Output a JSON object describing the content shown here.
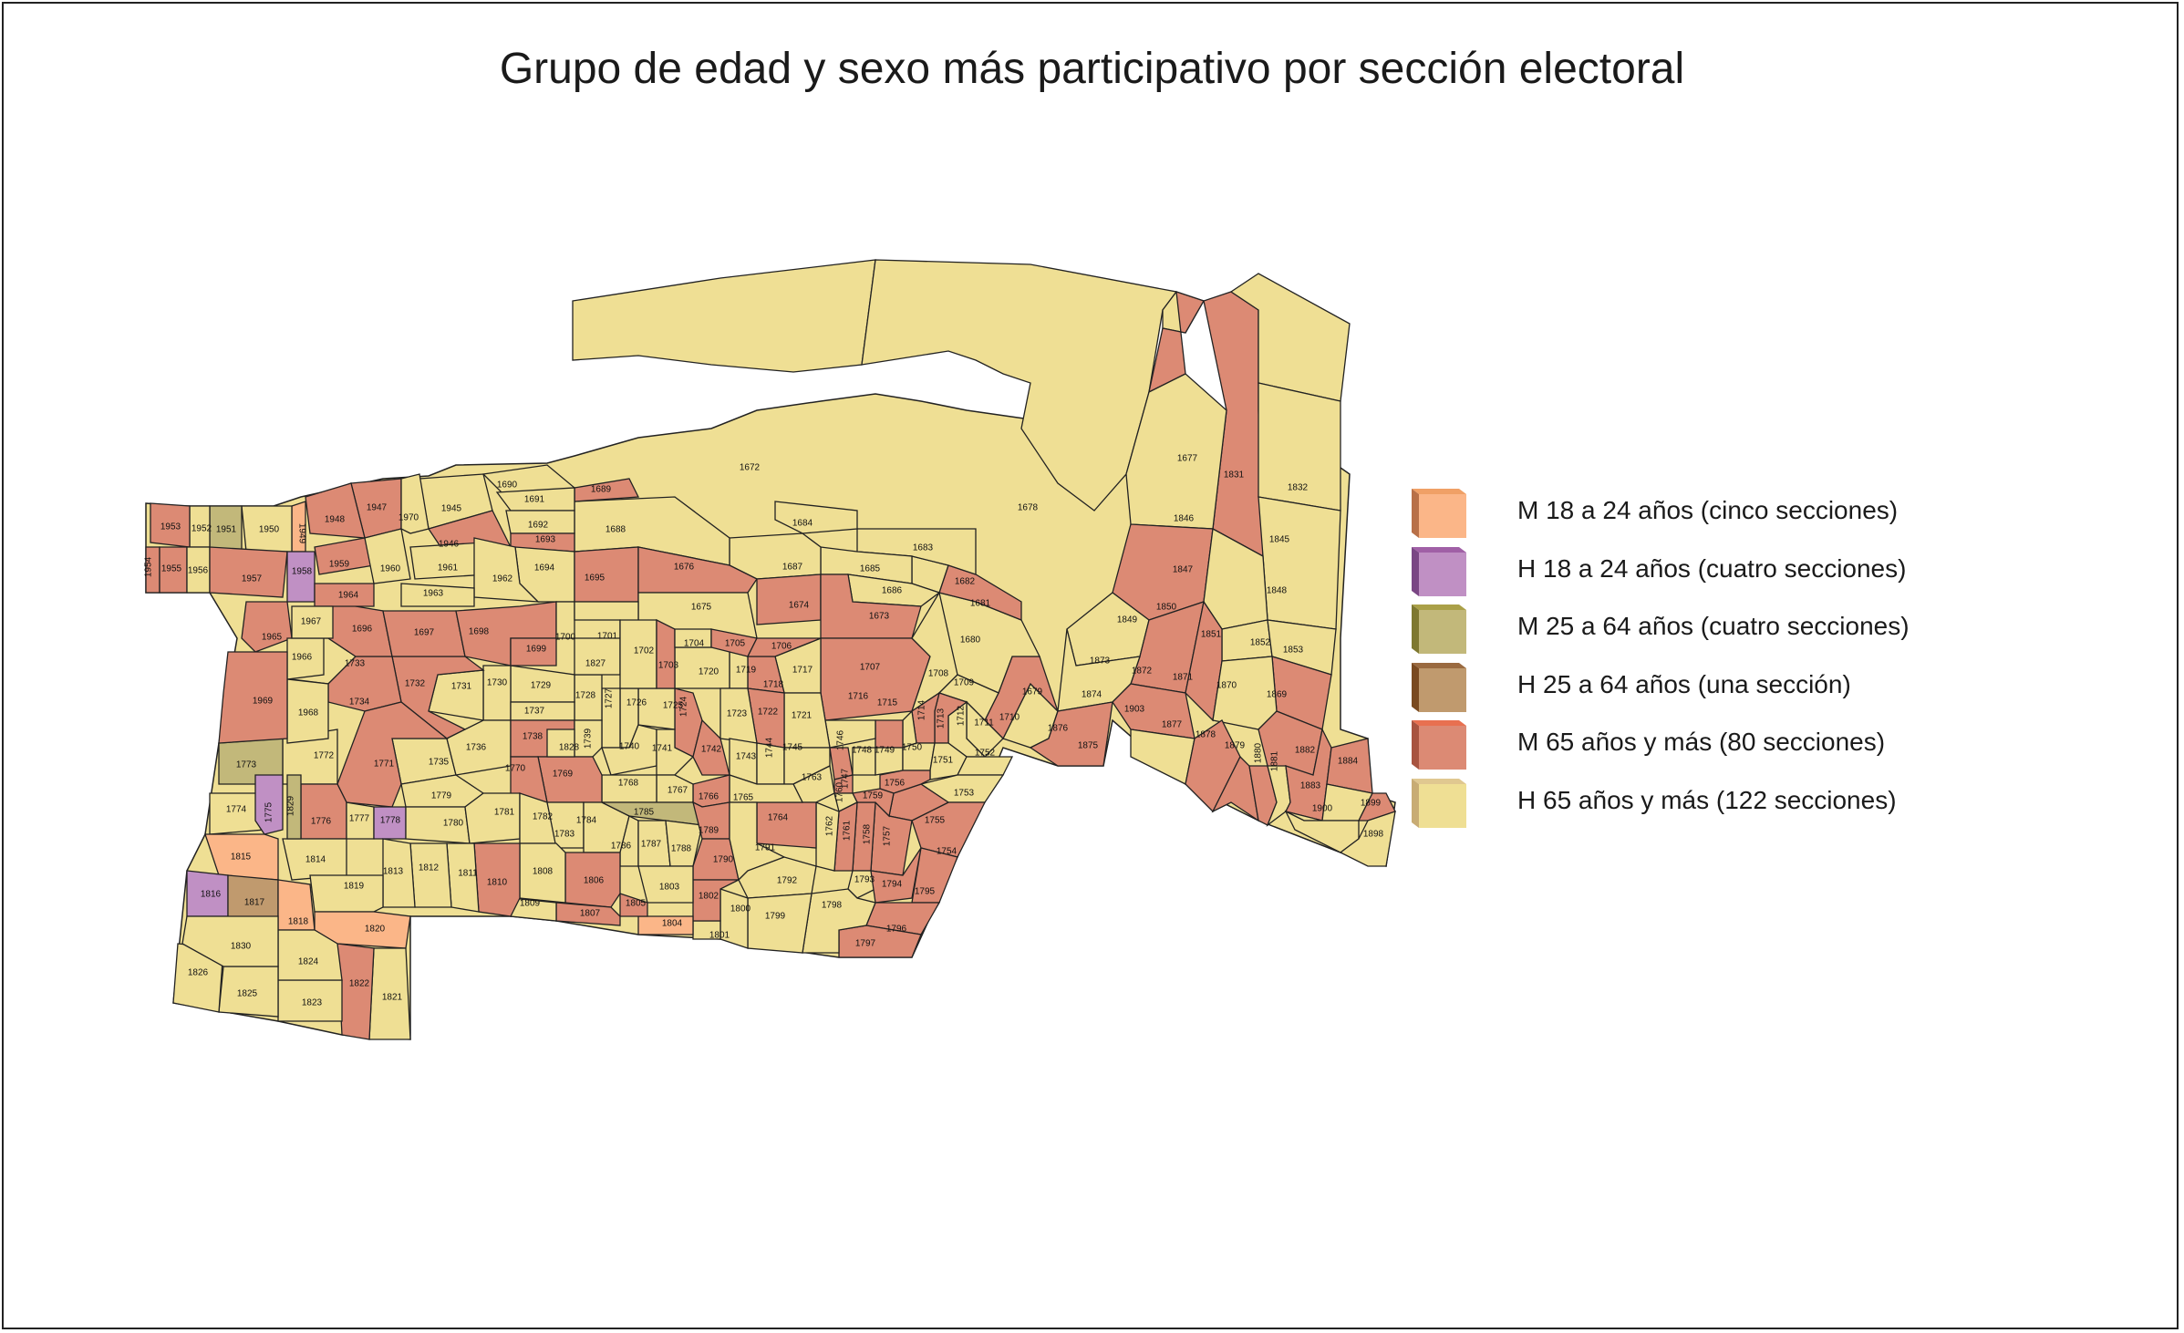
{
  "title": "Grupo de edad y sexo más participativo por sección electoral",
  "colors": {
    "M18": "#fbb688",
    "H18": "#c090c4",
    "M25": "#c2b87a",
    "H25": "#c09a6e",
    "M65": "#dc8a74",
    "H65": "#efdf94"
  },
  "legend": [
    {
      "key": "M18",
      "label": "M 18 a 24 años (cinco secciones)",
      "top": "#f0a066",
      "side": "#b87048"
    },
    {
      "key": "H18",
      "label": "H 18 a 24 años (cuatro secciones)",
      "top": "#a060a6",
      "side": "#7a4684"
    },
    {
      "key": "M25",
      "label": "M 25 a 64 años (cuatro secciones)",
      "top": "#aaa048",
      "side": "#7e7830"
    },
    {
      "key": "H25",
      "label": "H 25 a 64 años (una sección)",
      "top": "#9a6a40",
      "side": "#7a4a20"
    },
    {
      "key": "M65",
      "label": "M 65 años y más (80 secciones)",
      "top": "#e87050",
      "side": "#a85440"
    },
    {
      "key": "H65",
      "label": "H 65 años y más (122 secciones)",
      "top": "#e0c890",
      "side": "#c8ac74"
    }
  ],
  "sections": [
    {
      "id": "1672",
      "cat": "H65"
    },
    {
      "id": "1678",
      "cat": "H65"
    },
    {
      "id": "1677",
      "cat": "H65"
    },
    {
      "id": "1831",
      "cat": "M65"
    },
    {
      "id": "1832",
      "cat": "H65"
    },
    {
      "id": "1846",
      "cat": "M65"
    },
    {
      "id": "1845",
      "cat": "H65"
    },
    {
      "id": "1847",
      "cat": "H65"
    },
    {
      "id": "1848",
      "cat": "H65"
    },
    {
      "id": "1849",
      "cat": "M65"
    },
    {
      "id": "1850",
      "cat": "H65"
    },
    {
      "id": "1851",
      "cat": "H65"
    },
    {
      "id": "1852",
      "cat": "H65"
    },
    {
      "id": "1853",
      "cat": "M65"
    },
    {
      "id": "1873",
      "cat": "H65"
    },
    {
      "id": "1872",
      "cat": "M65"
    },
    {
      "id": "1871",
      "cat": "M65"
    },
    {
      "id": "1870",
      "cat": "H65"
    },
    {
      "id": "1869",
      "cat": "M65"
    },
    {
      "id": "1874",
      "cat": "H65"
    },
    {
      "id": "1903",
      "cat": "M65"
    },
    {
      "id": "1877",
      "cat": "H65"
    },
    {
      "id": "1878",
      "cat": "M65"
    },
    {
      "id": "1879",
      "cat": "M65"
    },
    {
      "id": "1880",
      "cat": "M65"
    },
    {
      "id": "1881",
      "cat": "H65"
    },
    {
      "id": "1882",
      "cat": "M65"
    },
    {
      "id": "1884",
      "cat": "M65"
    },
    {
      "id": "1883",
      "cat": "H65"
    },
    {
      "id": "1900",
      "cat": "H65"
    },
    {
      "id": "1899",
      "cat": "M65"
    },
    {
      "id": "1898",
      "cat": "H65"
    },
    {
      "id": "1876",
      "cat": "H65"
    },
    {
      "id": "1875",
      "cat": "M65"
    },
    {
      "id": "1679",
      "cat": "M65"
    },
    {
      "id": "1680",
      "cat": "H65"
    },
    {
      "id": "1681",
      "cat": "M65"
    },
    {
      "id": "1682",
      "cat": "H65"
    },
    {
      "id": "1683",
      "cat": "H65"
    },
    {
      "id": "1684",
      "cat": "H65"
    },
    {
      "id": "1685",
      "cat": "H65"
    },
    {
      "id": "1686",
      "cat": "H65"
    },
    {
      "id": "1687",
      "cat": "H65"
    },
    {
      "id": "1688",
      "cat": "H65"
    },
    {
      "id": "1689",
      "cat": "M65"
    },
    {
      "id": "1690",
      "cat": "H65"
    },
    {
      "id": "1691",
      "cat": "H65"
    },
    {
      "id": "1692",
      "cat": "H65"
    },
    {
      "id": "1693",
      "cat": "M65"
    },
    {
      "id": "1694",
      "cat": "H65"
    },
    {
      "id": "1695",
      "cat": "M65"
    },
    {
      "id": "1676",
      "cat": "M65"
    },
    {
      "id": "1675",
      "cat": "H65"
    },
    {
      "id": "1674",
      "cat": "M65"
    },
    {
      "id": "1673",
      "cat": "M65"
    },
    {
      "id": "1707",
      "cat": "M65"
    },
    {
      "id": "1708",
      "cat": "H65"
    },
    {
      "id": "1709",
      "cat": "H65"
    },
    {
      "id": "1710",
      "cat": "H65"
    },
    {
      "id": "1711",
      "cat": "H65"
    },
    {
      "id": "1712",
      "cat": "M65"
    },
    {
      "id": "1713",
      "cat": "M65"
    },
    {
      "id": "1714",
      "cat": "H65"
    },
    {
      "id": "1715",
      "cat": "M65"
    },
    {
      "id": "1716",
      "cat": "H65"
    },
    {
      "id": "1717",
      "cat": "H65"
    },
    {
      "id": "1718",
      "cat": "M65"
    },
    {
      "id": "1719",
      "cat": "H65"
    },
    {
      "id": "1720",
      "cat": "H65"
    },
    {
      "id": "1721",
      "cat": "H65"
    },
    {
      "id": "1722",
      "cat": "M65"
    },
    {
      "id": "1723",
      "cat": "H65"
    },
    {
      "id": "1724",
      "cat": "M65"
    },
    {
      "id": "1725",
      "cat": "H65"
    },
    {
      "id": "1726",
      "cat": "H65"
    },
    {
      "id": "1727",
      "cat": "H65"
    },
    {
      "id": "1728",
      "cat": "H65"
    },
    {
      "id": "1729",
      "cat": "H65"
    },
    {
      "id": "1730",
      "cat": "H65"
    },
    {
      "id": "1731",
      "cat": "H65"
    },
    {
      "id": "1732",
      "cat": "M65"
    },
    {
      "id": "1733",
      "cat": "H65"
    },
    {
      "id": "1734",
      "cat": "M65"
    },
    {
      "id": "1735",
      "cat": "H65"
    },
    {
      "id": "1736",
      "cat": "H65"
    },
    {
      "id": "1737",
      "cat": "H65"
    },
    {
      "id": "1738",
      "cat": "M65"
    },
    {
      "id": "1739",
      "cat": "H65"
    },
    {
      "id": "1740",
      "cat": "H65"
    },
    {
      "id": "1741",
      "cat": "H65"
    },
    {
      "id": "1742",
      "cat": "M65"
    },
    {
      "id": "1743",
      "cat": "H65"
    },
    {
      "id": "1744",
      "cat": "H65"
    },
    {
      "id": "1745",
      "cat": "H65"
    },
    {
      "id": "1746",
      "cat": "M65"
    },
    {
      "id": "1747",
      "cat": "M65"
    },
    {
      "id": "1748",
      "cat": "H65"
    },
    {
      "id": "1749",
      "cat": "H65"
    },
    {
      "id": "1750",
      "cat": "H65"
    },
    {
      "id": "1751",
      "cat": "H65"
    },
    {
      "id": "1752",
      "cat": "H65"
    },
    {
      "id": "1753",
      "cat": "H65"
    },
    {
      "id": "1754",
      "cat": "M65"
    },
    {
      "id": "1755",
      "cat": "M65"
    },
    {
      "id": "1756",
      "cat": "M65"
    },
    {
      "id": "1757",
      "cat": "M65"
    },
    {
      "id": "1758",
      "cat": "M65"
    },
    {
      "id": "1759",
      "cat": "M65"
    },
    {
      "id": "1760",
      "cat": "H65"
    },
    {
      "id": "1761",
      "cat": "M65"
    },
    {
      "id": "1762",
      "cat": "H65"
    },
    {
      "id": "1763",
      "cat": "H65"
    },
    {
      "id": "1764",
      "cat": "M65"
    },
    {
      "id": "1765",
      "cat": "H65"
    },
    {
      "id": "1766",
      "cat": "M65"
    },
    {
      "id": "1767",
      "cat": "H65"
    },
    {
      "id": "1768",
      "cat": "H65"
    },
    {
      "id": "1769",
      "cat": "M65"
    },
    {
      "id": "1770",
      "cat": "M65"
    },
    {
      "id": "1771",
      "cat": "M65"
    },
    {
      "id": "1772",
      "cat": "H65"
    },
    {
      "id": "1773",
      "cat": "M25"
    },
    {
      "id": "1774",
      "cat": "H65"
    },
    {
      "id": "1775",
      "cat": "H18"
    },
    {
      "id": "1776",
      "cat": "M65"
    },
    {
      "id": "1777",
      "cat": "H65"
    },
    {
      "id": "1778",
      "cat": "H18"
    },
    {
      "id": "1779",
      "cat": "H65"
    },
    {
      "id": "1780",
      "cat": "H65"
    },
    {
      "id": "1781",
      "cat": "H65"
    },
    {
      "id": "1782",
      "cat": "H65"
    },
    {
      "id": "1783",
      "cat": "H65"
    },
    {
      "id": "1784",
      "cat": "H65"
    },
    {
      "id": "1785",
      "cat": "M25"
    },
    {
      "id": "1786",
      "cat": "H65"
    },
    {
      "id": "1787",
      "cat": "H65"
    },
    {
      "id": "1788",
      "cat": "H65"
    },
    {
      "id": "1789",
      "cat": "M65"
    },
    {
      "id": "1790",
      "cat": "M65"
    },
    {
      "id": "1791",
      "cat": "H65"
    },
    {
      "id": "1792",
      "cat": "H65"
    },
    {
      "id": "1793",
      "cat": "H65"
    },
    {
      "id": "1794",
      "cat": "M65"
    },
    {
      "id": "1795",
      "cat": "M65"
    },
    {
      "id": "1796",
      "cat": "M65"
    },
    {
      "id": "1797",
      "cat": "M65"
    },
    {
      "id": "1798",
      "cat": "H65"
    },
    {
      "id": "1799",
      "cat": "H65"
    },
    {
      "id": "1800",
      "cat": "H65"
    },
    {
      "id": "1801",
      "cat": "H65"
    },
    {
      "id": "1802",
      "cat": "M65"
    },
    {
      "id": "1803",
      "cat": "H65"
    },
    {
      "id": "1804",
      "cat": "M18"
    },
    {
      "id": "1805",
      "cat": "M65"
    },
    {
      "id": "1806",
      "cat": "M65"
    },
    {
      "id": "1807",
      "cat": "M65"
    },
    {
      "id": "1808",
      "cat": "H65"
    },
    {
      "id": "1809",
      "cat": "H65"
    },
    {
      "id": "1810",
      "cat": "M65"
    },
    {
      "id": "1811",
      "cat": "H65"
    },
    {
      "id": "1812",
      "cat": "H65"
    },
    {
      "id": "1813",
      "cat": "H65"
    },
    {
      "id": "1814",
      "cat": "H65"
    },
    {
      "id": "1815",
      "cat": "M18"
    },
    {
      "id": "1816",
      "cat": "H18"
    },
    {
      "id": "1817",
      "cat": "H25"
    },
    {
      "id": "1818",
      "cat": "M18"
    },
    {
      "id": "1819",
      "cat": "H65"
    },
    {
      "id": "1820",
      "cat": "M18"
    },
    {
      "id": "1821",
      "cat": "H65"
    },
    {
      "id": "1822",
      "cat": "M65"
    },
    {
      "id": "1823",
      "cat": "H65"
    },
    {
      "id": "1824",
      "cat": "H65"
    },
    {
      "id": "1825",
      "cat": "H65"
    },
    {
      "id": "1826",
      "cat": "H65"
    },
    {
      "id": "1827",
      "cat": "H65"
    },
    {
      "id": "1828",
      "cat": "H65"
    },
    {
      "id": "1829",
      "cat": "M25"
    },
    {
      "id": "1830",
      "cat": "H65"
    },
    {
      "id": "1696",
      "cat": "M65"
    },
    {
      "id": "1697",
      "cat": "M65"
    },
    {
      "id": "1698",
      "cat": "M65"
    },
    {
      "id": "1699",
      "cat": "M65"
    },
    {
      "id": "1700",
      "cat": "H65"
    },
    {
      "id": "1701",
      "cat": "H65"
    },
    {
      "id": "1702",
      "cat": "H65"
    },
    {
      "id": "1703",
      "cat": "M65"
    },
    {
      "id": "1704",
      "cat": "H65"
    },
    {
      "id": "1705",
      "cat": "M65"
    },
    {
      "id": "1706",
      "cat": "M65"
    },
    {
      "id": "1945",
      "cat": "H65"
    },
    {
      "id": "1946",
      "cat": "M65"
    },
    {
      "id": "1947",
      "cat": "M65"
    },
    {
      "id": "1948",
      "cat": "M65"
    },
    {
      "id": "1949",
      "cat": "M18"
    },
    {
      "id": "1950",
      "cat": "H65"
    },
    {
      "id": "1951",
      "cat": "M25"
    },
    {
      "id": "1952",
      "cat": "H65"
    },
    {
      "id": "1953",
      "cat": "M65"
    },
    {
      "id": "1954",
      "cat": "M65"
    },
    {
      "id": "1955",
      "cat": "M65"
    },
    {
      "id": "1956",
      "cat": "H65"
    },
    {
      "id": "1957",
      "cat": "M65"
    },
    {
      "id": "1958",
      "cat": "H18"
    },
    {
      "id": "1959",
      "cat": "M65"
    },
    {
      "id": "1960",
      "cat": "H65"
    },
    {
      "id": "1961",
      "cat": "H65"
    },
    {
      "id": "1962",
      "cat": "H65"
    },
    {
      "id": "1963",
      "cat": "H65"
    },
    {
      "id": "1964",
      "cat": "M65"
    },
    {
      "id": "1965",
      "cat": "M65"
    },
    {
      "id": "1966",
      "cat": "H65"
    },
    {
      "id": "1967",
      "cat": "H65"
    },
    {
      "id": "1968",
      "cat": "H65"
    },
    {
      "id": "1969",
      "cat": "M65"
    },
    {
      "id": "1970",
      "cat": "H65"
    }
  ]
}
